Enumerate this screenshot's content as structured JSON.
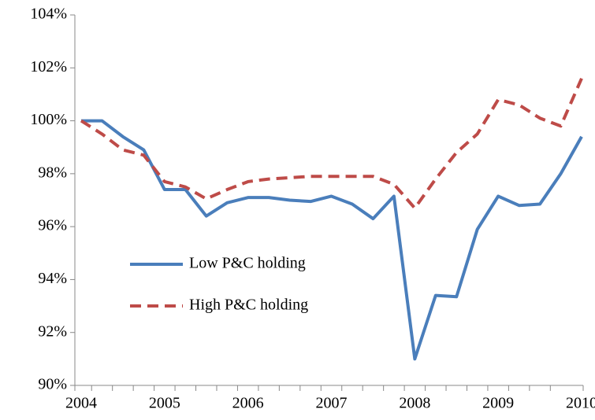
{
  "chart_data": {
    "type": "line",
    "categories": [
      "2004",
      null,
      null,
      null,
      "2005",
      null,
      null,
      null,
      "2006",
      null,
      null,
      null,
      "2007",
      null,
      null,
      null,
      "2008",
      null,
      null,
      null,
      "2009",
      null,
      null,
      null,
      "2010"
    ],
    "series": [
      {
        "name": "Low P&C holding",
        "color": "#4a7ebb",
        "dash": "solid",
        "values": [
          100,
          100,
          99.4,
          98.9,
          97.4,
          97.4,
          96.4,
          96.9,
          97.1,
          97.1,
          97.0,
          96.95,
          97.15,
          96.85,
          96.3,
          97.15,
          91.0,
          93.4,
          93.35,
          95.9,
          97.15,
          96.8,
          96.85,
          98.0,
          99.4
        ]
      },
      {
        "name": "High P&C holding",
        "color": "#be4b48",
        "dash": "dashed",
        "values": [
          100,
          99.5,
          98.9,
          98.7,
          97.7,
          97.5,
          97.05,
          97.4,
          97.7,
          97.8,
          97.85,
          97.9,
          97.9,
          97.9,
          97.9,
          97.6,
          96.7,
          97.8,
          98.8,
          99.5,
          100.8,
          100.6,
          100.1,
          99.8,
          101.6
        ]
      }
    ],
    "ylim": [
      90,
      104
    ],
    "yticks": [
      {
        "value": 90,
        "label": "90%"
      },
      {
        "value": 92,
        "label": "92%"
      },
      {
        "value": 94,
        "label": "94%"
      },
      {
        "value": 96,
        "label": "96%"
      },
      {
        "value": 98,
        "label": "98%"
      },
      {
        "value": 100,
        "label": "100%"
      },
      {
        "value": 102,
        "label": "102%"
      },
      {
        "value": 104,
        "label": "104%"
      }
    ],
    "grid": false,
    "legend": "left"
  }
}
